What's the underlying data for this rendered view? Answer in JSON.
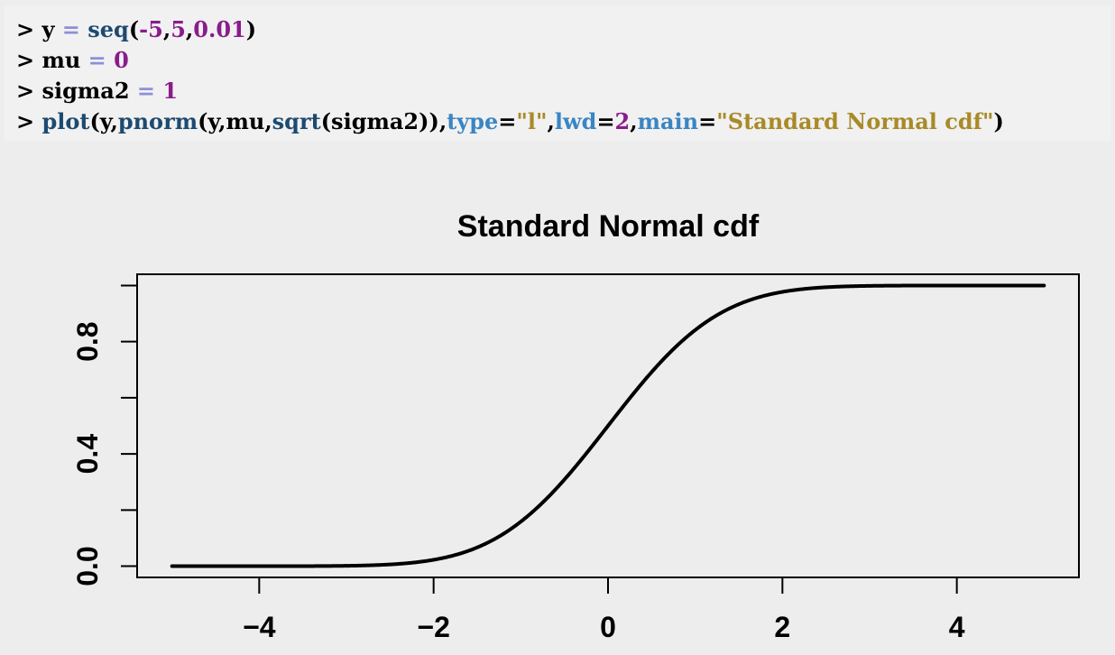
{
  "code": {
    "lines": [
      [
        {
          "t": "> ",
          "k": "plain"
        },
        {
          "t": "y",
          "k": "plain"
        },
        {
          "t": " = ",
          "k": "op"
        },
        {
          "t": "seq",
          "k": "fn"
        },
        {
          "t": "(",
          "k": "plain"
        },
        {
          "t": "-5",
          "k": "num"
        },
        {
          "t": ",",
          "k": "plain"
        },
        {
          "t": "5",
          "k": "num"
        },
        {
          "t": ",",
          "k": "plain"
        },
        {
          "t": "0.01",
          "k": "num"
        },
        {
          "t": ")",
          "k": "plain"
        }
      ],
      [
        {
          "t": "> ",
          "k": "plain"
        },
        {
          "t": "mu",
          "k": "plain"
        },
        {
          "t": " = ",
          "k": "op"
        },
        {
          "t": "0",
          "k": "num"
        }
      ],
      [
        {
          "t": "> ",
          "k": "plain"
        },
        {
          "t": "sigma2",
          "k": "plain"
        },
        {
          "t": " = ",
          "k": "op"
        },
        {
          "t": "1",
          "k": "num"
        }
      ],
      [
        {
          "t": "> ",
          "k": "plain"
        },
        {
          "t": "plot",
          "k": "fn"
        },
        {
          "t": "(y,",
          "k": "plain"
        },
        {
          "t": "pnorm",
          "k": "fn"
        },
        {
          "t": "(y,mu,",
          "k": "plain"
        },
        {
          "t": "sqrt",
          "k": "fn"
        },
        {
          "t": "(sigma2)),",
          "k": "plain"
        },
        {
          "t": "type",
          "k": "arg"
        },
        {
          "t": "=",
          "k": "plain"
        },
        {
          "t": "\"l\"",
          "k": "str"
        },
        {
          "t": ",",
          "k": "plain"
        },
        {
          "t": "lwd",
          "k": "arg"
        },
        {
          "t": "=",
          "k": "plain"
        },
        {
          "t": "2",
          "k": "num"
        },
        {
          "t": ",",
          "k": "plain"
        },
        {
          "t": "main",
          "k": "arg"
        },
        {
          "t": "=",
          "k": "plain"
        },
        {
          "t": "\"Standard Normal cdf\"",
          "k": "str"
        },
        {
          "t": ")",
          "k": "plain"
        }
      ]
    ]
  },
  "chart_data": {
    "type": "line",
    "title": "Standard Normal cdf",
    "xlabel": "",
    "ylabel": "",
    "series": [
      {
        "function": "pnorm",
        "mean": 0,
        "sd": 1,
        "x_from": -5,
        "x_to": 5,
        "x_step": 0.01,
        "color": "#000000"
      }
    ],
    "xlim": [
      -5.4,
      5.4
    ],
    "ylim": [
      -0.04,
      1.04
    ],
    "x_ticks": [
      -4,
      -2,
      0,
      2,
      4
    ],
    "x_tick_labels": [
      "−4",
      "−2",
      "0",
      "2",
      "4"
    ],
    "y_ticks": [
      0,
      0.2,
      0.4,
      0.6,
      0.8,
      1.0
    ],
    "y_tick_labels": [
      "0.0",
      "",
      "0.4",
      "",
      "0.8",
      ""
    ],
    "grid": false,
    "legend": "none",
    "box": true
  }
}
